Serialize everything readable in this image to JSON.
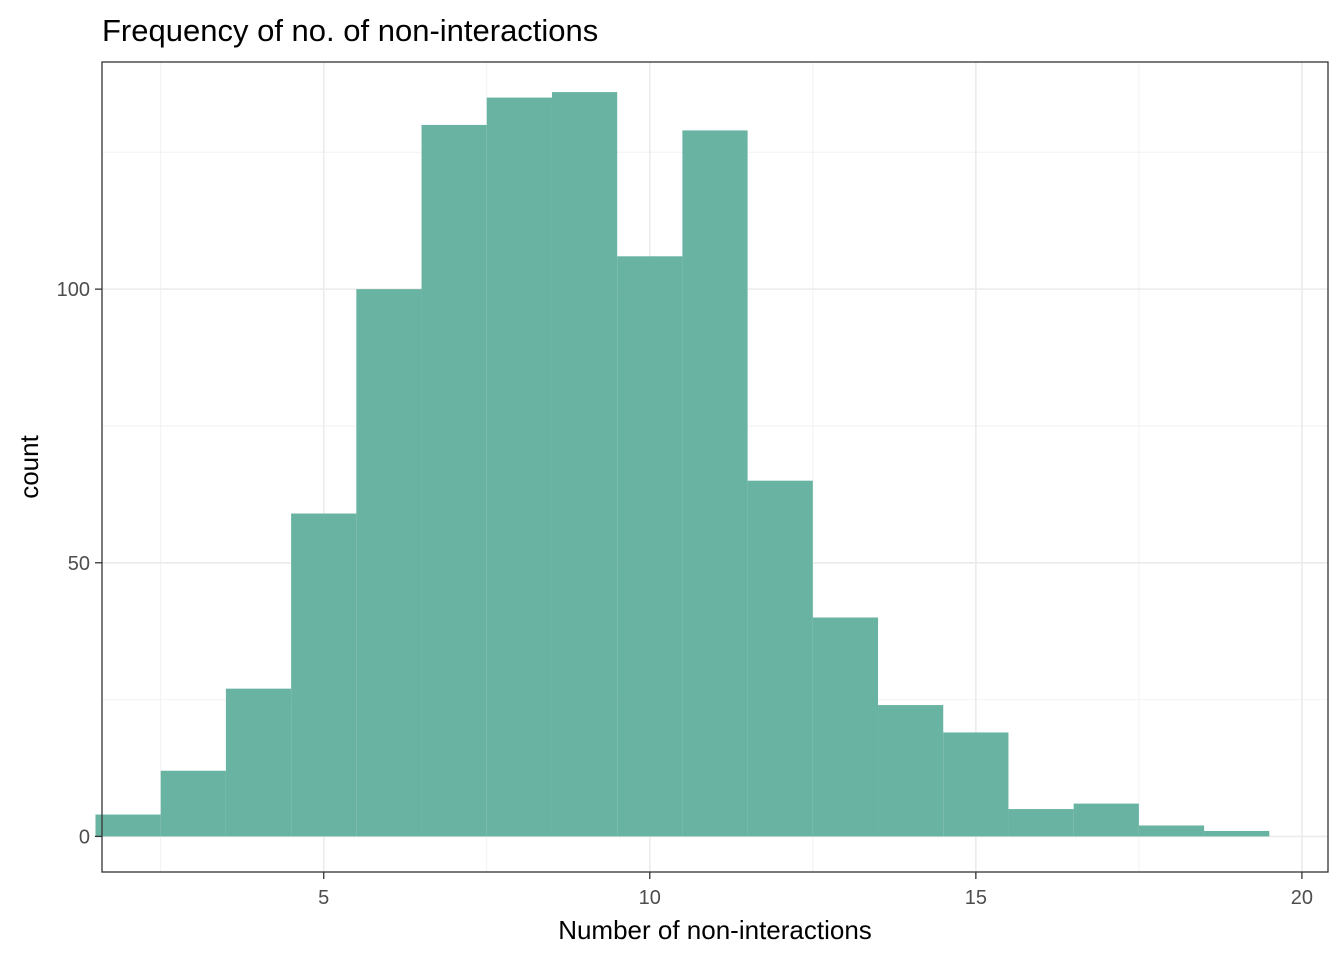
{
  "chart_data": {
    "type": "bar",
    "title": "Frequency of no. of non-interactions",
    "xlabel": "Number of non-interactions",
    "ylabel": "count",
    "xlim": [
      1.6,
      20.4
    ],
    "ylim": [
      -6.5,
      141.5
    ],
    "x_ticks": [
      5,
      10,
      15,
      20
    ],
    "y_ticks": [
      0,
      50,
      100
    ],
    "grid": true,
    "bar_color": "#69b3a2",
    "bin_width": 1,
    "bins": [
      {
        "x": 2,
        "count": 4
      },
      {
        "x": 3,
        "count": 12
      },
      {
        "x": 4,
        "count": 27
      },
      {
        "x": 5,
        "count": 59
      },
      {
        "x": 6,
        "count": 100
      },
      {
        "x": 7,
        "count": 130
      },
      {
        "x": 8,
        "count": 135
      },
      {
        "x": 9,
        "count": 136
      },
      {
        "x": 10,
        "count": 106
      },
      {
        "x": 11,
        "count": 129
      },
      {
        "x": 12,
        "count": 65
      },
      {
        "x": 13,
        "count": 40
      },
      {
        "x": 14,
        "count": 24
      },
      {
        "x": 15,
        "count": 19
      },
      {
        "x": 16,
        "count": 5
      },
      {
        "x": 17,
        "count": 6
      },
      {
        "x": 18,
        "count": 2
      },
      {
        "x": 19,
        "count": 1
      }
    ]
  }
}
